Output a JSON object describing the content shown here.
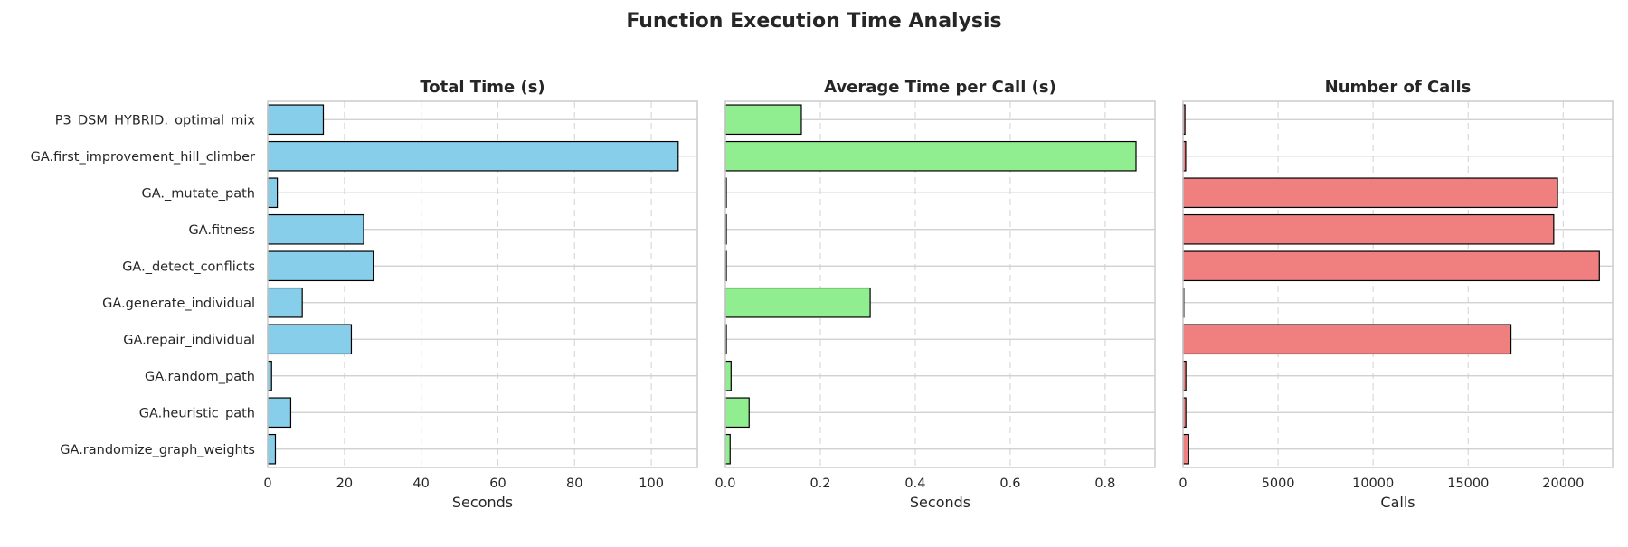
{
  "suptitle": "Function Execution Time Analysis",
  "functions": [
    "P3_DSM_HYBRID._optimal_mix",
    "GA.first_improvement_hill_climber",
    "GA._mutate_path",
    "GA.fitness",
    "GA._detect_conflicts",
    "GA.generate_individual",
    "GA.repair_individual",
    "GA.random_path",
    "GA.heuristic_path",
    "GA.randomize_graph_weights"
  ],
  "chart_data": [
    {
      "type": "bar",
      "orientation": "horizontal",
      "title": "Total Time (s)",
      "xlabel": "Seconds",
      "xlim": [
        0,
        112
      ],
      "xticks": [
        0,
        20,
        40,
        60,
        80,
        100
      ],
      "tick_labels": [
        "0",
        "20",
        "40",
        "60",
        "80",
        "100"
      ],
      "color": "#87ceeb",
      "values": [
        14.5,
        107,
        2.5,
        25,
        27.5,
        9,
        21.8,
        1.0,
        6.0,
        2.0
      ]
    },
    {
      "type": "bar",
      "orientation": "horizontal",
      "title": "Average Time per Call (s)",
      "xlabel": "Seconds",
      "xlim": [
        0,
        0.905
      ],
      "xticks": [
        0.0,
        0.2,
        0.4,
        0.6,
        0.8
      ],
      "tick_labels": [
        "0.0",
        "0.2",
        "0.4",
        "0.6",
        "0.8"
      ],
      "color": "#90ee90",
      "values": [
        0.16,
        0.865,
        0.002,
        0.002,
        0.002,
        0.305,
        0.002,
        0.012,
        0.05,
        0.01
      ]
    },
    {
      "type": "bar",
      "orientation": "horizontal",
      "title": "Number of Calls",
      "xlabel": "Calls",
      "xlim": [
        0,
        22600
      ],
      "xticks": [
        0,
        5000,
        10000,
        15000,
        20000
      ],
      "tick_labels": [
        "0",
        "5000",
        "10000",
        "15000",
        "20000"
      ],
      "color": "#f08080",
      "values": [
        100,
        140,
        19700,
        19500,
        21900,
        40,
        17250,
        150,
        150,
        300
      ]
    }
  ]
}
